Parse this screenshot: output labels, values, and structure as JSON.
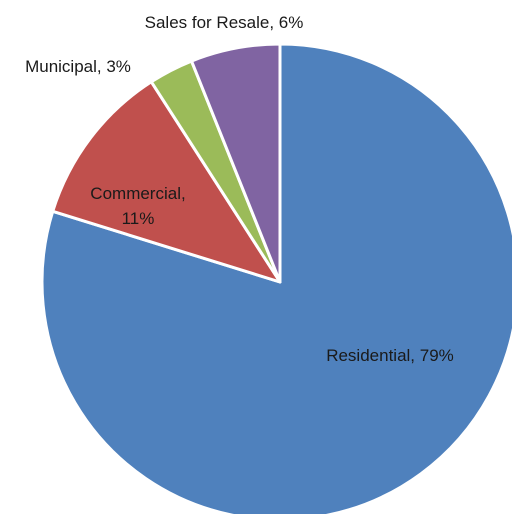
{
  "chart_data": {
    "type": "pie",
    "title": "",
    "slices": [
      {
        "label": "Residential",
        "value": 79,
        "value_label": "79%",
        "color": "#4F81BD"
      },
      {
        "label": "Commercial",
        "value": 11,
        "value_label": "11%",
        "color": "#C0504D"
      },
      {
        "label": "Municipal",
        "value": 3,
        "value_label": "3%",
        "color": "#9BBB59"
      },
      {
        "label": "Sales for Resale",
        "value": 6,
        "value_label": "6%",
        "color": "#8064A2"
      }
    ],
    "start_angle": "12 o'clock",
    "direction": "clockwise",
    "legend": "none",
    "labels": [
      {
        "lines": [
          "Residential, 79%"
        ]
      },
      {
        "lines": [
          "Commercial,",
          "11%"
        ]
      },
      {
        "lines": [
          "Municipal, 3%"
        ]
      },
      {
        "lines": [
          "Sales for Resale, 6%"
        ]
      }
    ]
  }
}
